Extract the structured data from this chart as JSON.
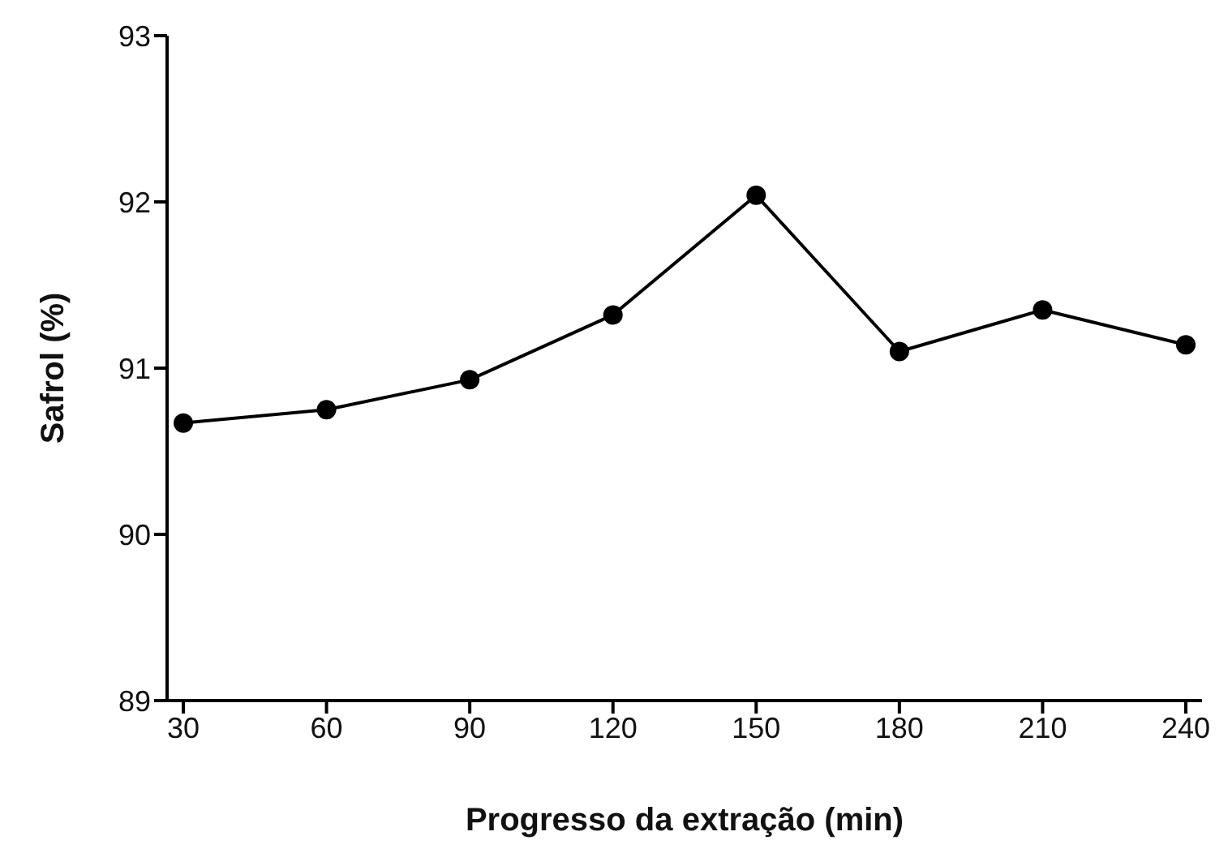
{
  "chart_data": {
    "type": "line",
    "xlabel": "Progresso da extração (min)",
    "ylabel": "Safrol (%)",
    "categories": [
      "30",
      "60",
      "90",
      "120",
      "150",
      "180",
      "210",
      "240"
    ],
    "series": [
      {
        "color": "#000000",
        "values": [
          90.67,
          90.75,
          90.93,
          91.32,
          92.04,
          91.1,
          91.35,
          91.14
        ]
      }
    ],
    "ylim": [
      89,
      93
    ],
    "yticks": [
      89,
      90,
      91,
      92,
      93
    ],
    "grid": false,
    "legend": false,
    "marker": "circle",
    "line_style": "solid"
  }
}
